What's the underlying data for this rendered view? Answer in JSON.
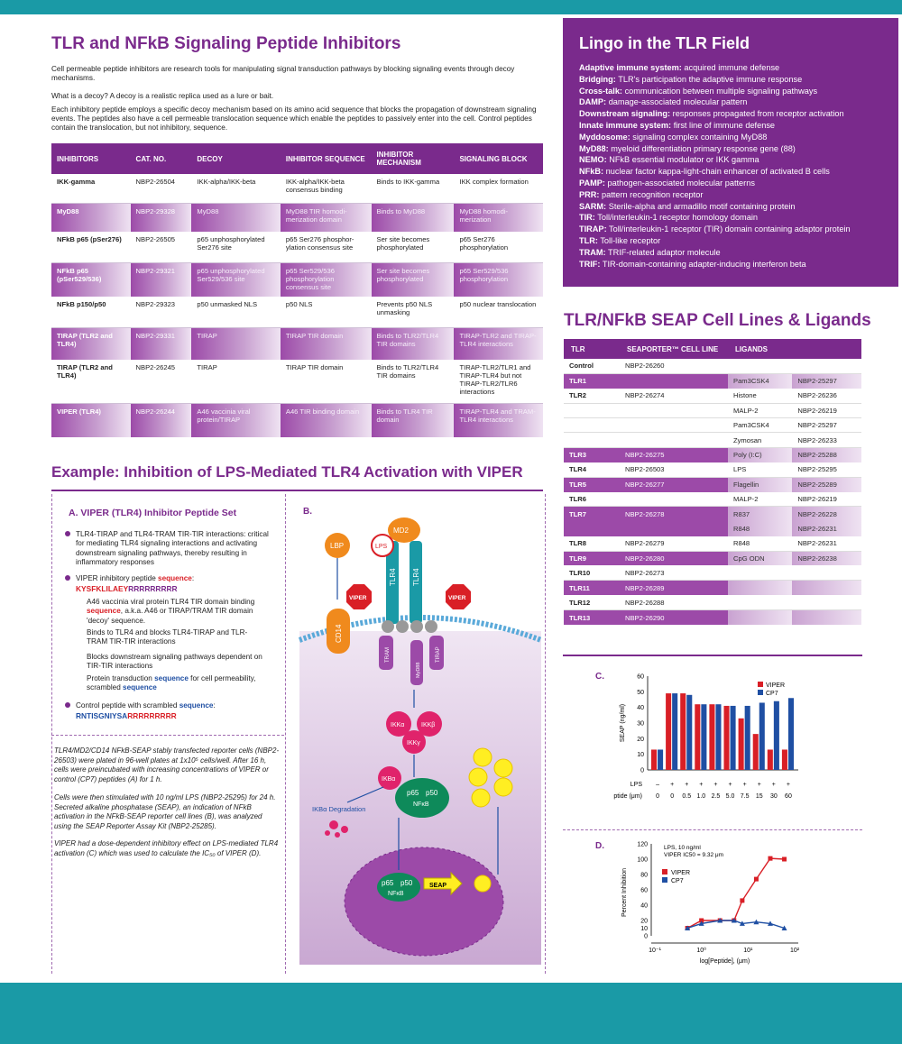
{
  "header_title": "TLR and NFkB Signaling Peptide Inhibitors",
  "intro_p1": "Cell permeable peptide inhibitors are research tools for manipulating signal transduction pathways by blocking signaling events through decoy mechanisms.",
  "intro_p2": "What is a decoy? A decoy is a realistic replica used as a lure or bait.",
  "intro_p3": "Each inhibitory peptide employs a specific decoy mechanism based on its amino acid sequence that blocks the propagation of downstream signaling events. The peptides also have a cell permeable translocation sequence which enable the peptides to passively enter into the cell. Control peptides contain the translocation, but not inhibitory, sequence.",
  "inhibitors": {
    "headers": [
      "INHIBITORS",
      "CAT. NO.",
      "DECOY",
      "INHIBITOR SEQUENCE",
      "INHIBITOR MECHANISM",
      "SIGNALING BLOCK"
    ],
    "rows": [
      [
        "IKK-gamma",
        "NBP2-26504",
        "IKK-alpha/IKK-beta",
        "IKK-alpha/IKK-beta consensus binding",
        "Binds to IKK-gamma",
        "IKK complex formation"
      ],
      [
        "MyD88",
        "NBP2-29328",
        "MyD88",
        "MyD88 TIR homodi-merization domain",
        "Binds to MyD88",
        "MyD88 homodi-merization"
      ],
      [
        "NFkB p65 (pSer276)",
        "NBP2-26505",
        "p65 unphosphorylated Ser276 site",
        "p65 Ser276 phosphor-ylation consensus site",
        "Ser site becomes phosphorylated",
        "p65 Ser276 phosphorylation"
      ],
      [
        "NFkB p65 (pSer529/536)",
        "NBP2-29321",
        "p65 unphosphorylated Ser529/536 site",
        "p65 Ser529/536 phosphorylation consensus site",
        "Ser site becomes phosphorylated",
        "p65 Ser529/536 phosphorylation"
      ],
      [
        "NFkB p150/p50",
        "NBP2-29323",
        "p50 unmasked NLS",
        "p50 NLS",
        "Prevents p50 NLS unmasking",
        "p50 nuclear translocation"
      ],
      [
        "TIRAP (TLR2 and TLR4)",
        "NBP2-29331",
        "TIRAP",
        "TIRAP TIR domain",
        "Binds to TLR2/TLR4 TIR domains",
        "TIRAP-TLR2 and TIRAP-TLR4 interactions"
      ],
      [
        "TIRAP (TLR2 and TLR4)",
        "NBP2-26245",
        "TIRAP",
        "TIRAP TIR domain",
        "Binds to TLR2/TLR4 TIR domains",
        "TIRAP-TLR2/TLR1 and TIRAP-TLR4 but not TIRAP-TLR2/TLR6 interactions"
      ],
      [
        "VIPER (TLR4)",
        "NBP2-26244",
        "A46 vaccinia viral protein/TIRAP",
        "A46 TIR binding domain",
        "Binds to TLR4 TIR domain",
        "TIRAP-TLR4 and TRAM-TLR4 interactions"
      ]
    ]
  },
  "lingo": {
    "title": "Lingo in the TLR Field",
    "items": [
      [
        "Adaptive immune system:",
        "acquired immune defense"
      ],
      [
        "Bridging:",
        "TLR's participation the adaptive immune response"
      ],
      [
        "Cross-talk:",
        "communication between multiple signaling pathways"
      ],
      [
        "DAMP:",
        "damage-associated molecular pattern"
      ],
      [
        "Downstream signaling:",
        "responses propagated from receptor activation"
      ],
      [
        "Innate immune system:",
        "first line of immune defense"
      ],
      [
        "Myddosome:",
        "signaling complex containing MyD88"
      ],
      [
        "MyD88:",
        "myeloid differentiation primary response gene (88)"
      ],
      [
        "NEMO:",
        "NFkB essential modulator or IKK gamma"
      ],
      [
        "NFkB:",
        "nuclear factor kappa-light-chain enhancer of activated B cells"
      ],
      [
        "PAMP:",
        "pathogen-associated molecular patterns"
      ],
      [
        "PRR:",
        "pattern recognition receptor"
      ],
      [
        "SARM:",
        "Sterile-alpha and armadillo motif containing protein"
      ],
      [
        "TIR:",
        "Toll/interleukin-1 receptor homology domain"
      ],
      [
        "TIRAP:",
        "Toll/interleukin-1 receptor (TIR) domain containing adaptor protein"
      ],
      [
        "TLR:",
        "Toll-like receptor"
      ],
      [
        "TRAM:",
        "TRIF-related adaptor molecule"
      ],
      [
        "TRIF:",
        "TIR-domain-containing adapter-inducing interferon beta"
      ]
    ]
  },
  "seap": {
    "title": "TLR/NFkB SEAP Cell Lines & Ligands",
    "headers": [
      "TLR",
      "SEAPORTER™ CELL LINE",
      "LIGANDS"
    ],
    "rows": [
      [
        "Control",
        "NBP2-26260",
        "",
        ""
      ],
      [
        "TLR1",
        "",
        "Pam3CSK4",
        "NBP2-25297"
      ],
      [
        "TLR2",
        "NBP2-26274",
        "Histone",
        "NBP2-26236"
      ],
      [
        "",
        "",
        "MALP-2",
        "NBP2-26219"
      ],
      [
        "",
        "",
        "Pam3CSK4",
        "NBP2-25297"
      ],
      [
        "",
        "",
        "Zymosan",
        "NBP2-26233"
      ],
      [
        "TLR3",
        "NBP2-26275",
        "Poly (I:C)",
        "NBP2-25288"
      ],
      [
        "TLR4",
        "NBP2-26503",
        "LPS",
        "NBP2-25295"
      ],
      [
        "TLR5",
        "NBP2-26277",
        "Flagellin",
        "NBP2-25289"
      ],
      [
        "TLR6",
        "",
        "MALP-2",
        "NBP2-26219"
      ],
      [
        "TLR7",
        "NBP2-26278",
        "R837",
        "NBP2-26228"
      ],
      [
        "",
        "",
        "R848",
        "NBP2-26231"
      ],
      [
        "TLR8",
        "NBP2-26279",
        "R848",
        "NBP2-26231"
      ],
      [
        "TLR9",
        "NBP2-26280",
        "CpG ODN",
        "NBP2-26238"
      ],
      [
        "TLR10",
        "NBP2-26273",
        "",
        ""
      ],
      [
        "TLR11",
        "NBP2-26289",
        "",
        ""
      ],
      [
        "TLR12",
        "NBP2-26288",
        "",
        ""
      ],
      [
        "TLR13",
        "NBP2-26290",
        "",
        ""
      ]
    ]
  },
  "example_title": "Example: Inhibition of LPS-Mediated TLR4 Activation with VIPER",
  "panelA": {
    "title": "A. VIPER (TLR4) Inhibitor Peptide Set",
    "b1": "TLR4-TIRAP and TLR4-TRAM TIR-TIR interactions: critical for mediating TLR4 signaling interactions and activating downstream signaling pathways, thereby resulting in inflammatory responses",
    "b2_pre": "VIPER inhibitory peptide ",
    "b2_key": "sequence",
    "b2_suf": ":",
    "seq1": "KYSFKLILAEY",
    "seq1b": "RRRRRRRRR",
    "s1_pre": "A46 vaccinia viral protein TLR4 TIR domain binding ",
    "s1_key": "sequence",
    "s1_suf": ", a.k.a. A46 or TIRAP/TRAM TIR domain 'decoy' sequence.",
    "s2": "Binds to TLR4 and blocks TLR4-TIRAP and TLR-TRAM TIR-TIR interactions",
    "s3": "Blocks downstream signaling pathways dependent on TIR-TIR interactions",
    "s4_pre": "Protein transduction ",
    "s4_key": "sequence",
    "s4_mid": " for cell permeability, scrambled ",
    "s4_key2": "sequence",
    "b3_pre": "Control peptide with scrambled ",
    "b3_key": "sequence",
    "b3_suf": ":",
    "seq2": "RNTISGNIYSA",
    "seq2b": "RRRRRRRRR",
    "m1": "TLR4/MD2/CD14 NFkB-SEAP stably transfected reporter cells (NBP2-26503) were plated in 96-well plates at 1x10⁵ cells/well. After 16 h, cells were preincubated with increasing concentrations of VIPER or control (CP7) peptides  (A) for 1 h.",
    "m2": "Cells were then stimulated with 10 ng/ml LPS (NBP2-25295) for 24 h. Secreted alkaline phosphatase (SEAP), an indication of NFkB activation in the NFkB-SEAP reporter cell lines (B), was analyzed using the SEAP Reporter Assay Kit (NBP2-25285).",
    "m3": "VIPER had a dose-dependent inhibitory effect on LPS-mediated TLR4 activation (C) which was used to calculate the IC₅₀ of VIPER (D)."
  },
  "panelB": {
    "label": "B.",
    "md2": "MD2",
    "lbp": "LBP",
    "lps": "LPS",
    "cd14": "CD14",
    "tlr4": "TLR4",
    "viper": "VIPER",
    "tram": "TRAM",
    "myd88": "MyD88",
    "tirap": "TIRAP",
    "ikka": "IKKα",
    "ikkb": "IKKβ",
    "ikkg": "IKKγ",
    "ikba": "IKBα",
    "ikba_deg": "IKBα Degradation",
    "p65": "p65",
    "p50": "p50",
    "nfkb": "NFκB",
    "seap": "SEAP"
  },
  "colors": {
    "purple": "#7a2a8c",
    "teal": "#1a9aa6",
    "red": "#d91f26",
    "blue": "#1f4fa3",
    "orange": "#f08a1d",
    "pink": "#e0236b",
    "green": "#0e8a5a"
  },
  "chart_data": [
    {
      "type": "bar",
      "label": "C.",
      "ylabel": "SEAP (ng/ml)",
      "ylim": [
        0,
        60
      ],
      "yticks": [
        0,
        10,
        20,
        30,
        40,
        50,
        60
      ],
      "row_lps_label": "LPS",
      "lps": [
        "–",
        "+",
        "+",
        "+",
        "+",
        "+",
        "+",
        "+",
        "+",
        "+"
      ],
      "row_pep_label": "Peptide (μm)",
      "categories": [
        "0",
        "0",
        "0.5",
        "1.0",
        "2.5",
        "5.0",
        "7.5",
        "15",
        "30",
        "60"
      ],
      "series": [
        {
          "name": "VIPER",
          "values": [
            13,
            49,
            49,
            42,
            42,
            41,
            33,
            23,
            13,
            13
          ]
        },
        {
          "name": "CP7",
          "values": [
            13,
            49,
            48,
            42,
            42,
            41,
            41,
            43,
            44,
            46
          ]
        }
      ]
    },
    {
      "type": "line",
      "label": "D.",
      "xlabel": "log[Peptide], (μm)",
      "ylabel": "Percent Inhibition",
      "ylim": [
        0,
        120
      ],
      "yticks": [
        0,
        10,
        20,
        40,
        60,
        80,
        100,
        120
      ],
      "note1": "LPS, 10 ng/ml",
      "note2": "VIPER IC50 = 9.32 μm",
      "xtick_labels": [
        "10⁻¹",
        "10⁰",
        "10¹",
        "10²"
      ],
      "series": [
        {
          "name": "VIPER",
          "x": [
            0.5,
            1,
            2.5,
            5,
            7.5,
            15,
            30,
            60
          ],
          "values": [
            10,
            20,
            20,
            20,
            46,
            74,
            101,
            100
          ]
        },
        {
          "name": "CP7",
          "x": [
            0.5,
            1,
            2.5,
            5,
            7.5,
            15,
            30,
            60
          ],
          "values": [
            10,
            16,
            20,
            20,
            16,
            18,
            16,
            10
          ]
        }
      ]
    }
  ]
}
